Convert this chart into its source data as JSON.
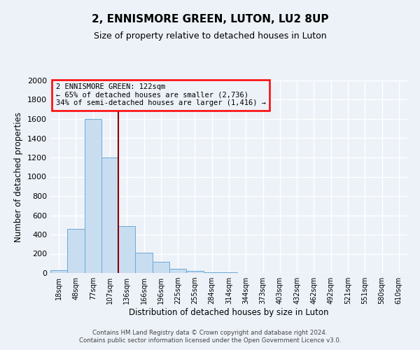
{
  "title": "2, ENNISMORE GREEN, LUTON, LU2 8UP",
  "subtitle": "Size of property relative to detached houses in Luton",
  "xlabel": "Distribution of detached houses by size in Luton",
  "ylabel": "Number of detached properties",
  "bar_labels": [
    "18sqm",
    "48sqm",
    "77sqm",
    "107sqm",
    "136sqm",
    "166sqm",
    "196sqm",
    "225sqm",
    "255sqm",
    "284sqm",
    "314sqm",
    "344sqm",
    "373sqm",
    "403sqm",
    "432sqm",
    "462sqm",
    "492sqm",
    "521sqm",
    "551sqm",
    "580sqm",
    "610sqm"
  ],
  "bar_values": [
    30,
    460,
    1600,
    1200,
    490,
    210,
    120,
    45,
    20,
    10,
    5,
    0,
    0,
    0,
    0,
    0,
    0,
    0,
    0,
    0,
    0
  ],
  "bar_color": "#c9ddf0",
  "bar_edge_color": "#6aaad4",
  "ylim": [
    0,
    2000
  ],
  "yticks": [
    0,
    200,
    400,
    600,
    800,
    1000,
    1200,
    1400,
    1600,
    1800,
    2000
  ],
  "red_line_x": 3.5,
  "annotation_title": "2 ENNISMORE GREEN: 122sqm",
  "annotation_line1": "← 65% of detached houses are smaller (2,736)",
  "annotation_line2": "34% of semi-detached houses are larger (1,416) →",
  "background_color": "#edf2f9",
  "plot_bg_color": "#edf2f9",
  "grid_color": "#ffffff",
  "footer_line1": "Contains HM Land Registry data © Crown copyright and database right 2024.",
  "footer_line2": "Contains public sector information licensed under the Open Government Licence v3.0."
}
